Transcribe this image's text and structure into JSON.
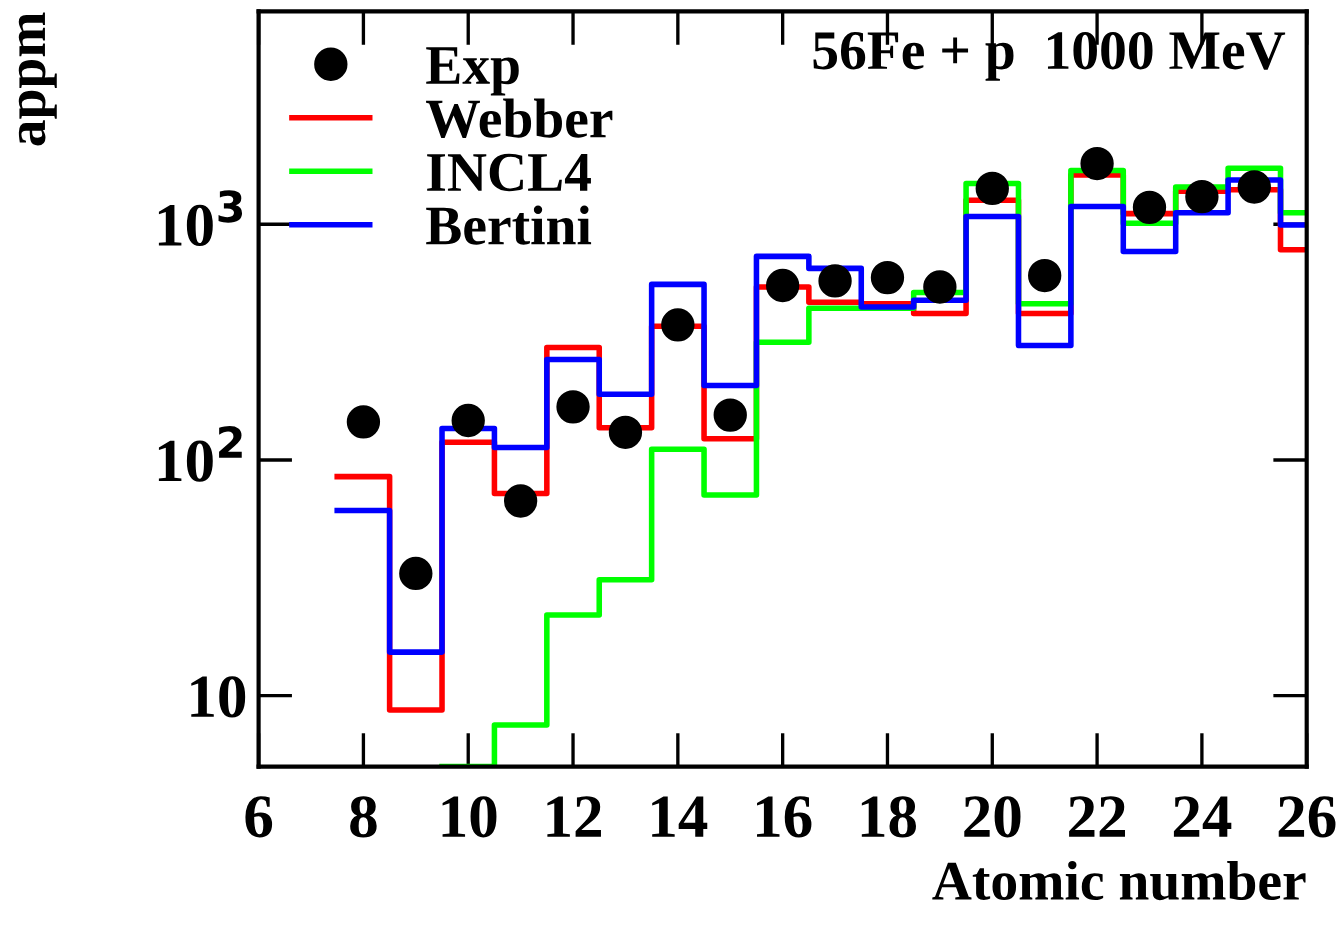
{
  "chart_data": {
    "type": "histogram",
    "bins": [
      7.5,
      8.5,
      9.5,
      10.5,
      11.5,
      12.5,
      13.5,
      14.5,
      15.5,
      16.5,
      17.5,
      18.5,
      19.5,
      20.5,
      21.5,
      22.5,
      23.5,
      24.5,
      25.5,
      26.5
    ],
    "title": "56Fe + p  1000 MeV",
    "xlabel": "Atomic number",
    "ylabel": "appm",
    "series": [
      {
        "name": "Exp",
        "type": "scatter",
        "x": [
          8,
          9,
          10,
          11,
          12,
          13,
          14,
          15,
          16,
          17,
          18,
          19,
          20,
          21,
          22,
          23,
          24,
          25
        ],
        "marker": "circle",
        "color": "#000000",
        "values": [
          145,
          33,
          147,
          67,
          168,
          131,
          374,
          155,
          550,
          575,
          594,
          542,
          1420,
          606,
          1810,
          1180,
          1310,
          1440
        ]
      },
      {
        "name": "Webber",
        "color": "#ff0000",
        "values": [
          85,
          8.7,
          119,
          72,
          300,
          137,
          369,
          123,
          542,
          467,
          460,
          418,
          1265,
          418,
          1620,
          1110,
          1380,
          1400,
          780
        ]
      },
      {
        "name": "INCL4",
        "color": "#00ff00",
        "bins": [
          9.5,
          10.5,
          11.5,
          12.5,
          13.5,
          14.5,
          15.5,
          16.5,
          17.5,
          18.5,
          19.5,
          20.5,
          21.5,
          22.5,
          23.5,
          24.5,
          25.5,
          26.5
        ],
        "values": [
          5,
          7.5,
          22,
          31,
          111,
          71,
          316,
          440,
          440,
          514,
          1490,
          460,
          1690,
          1010,
          1440,
          1730,
          1120
        ]
      },
      {
        "name": "Bertini",
        "color": "#0000ff",
        "values": [
          61,
          15.3,
          136,
          113,
          267,
          190,
          556,
          207,
          731,
          650,
          446,
          476,
          1080,
          306,
          1190,
          766,
          1120,
          1540,
          993
        ]
      }
    ],
    "log": "y",
    "xlim": [
      6,
      26
    ],
    "xticks": [
      6,
      8,
      10,
      12,
      14,
      16,
      18,
      20,
      22,
      24,
      26
    ],
    "ylim": [
      5,
      8000
    ],
    "yticks": [
      {
        "value": 10,
        "label": "10"
      },
      {
        "value": 100,
        "label": "10$^{2}$"
      },
      {
        "value": 1000,
        "label": "10$^{3}$"
      }
    ],
    "grid": false,
    "legend": "top left"
  }
}
